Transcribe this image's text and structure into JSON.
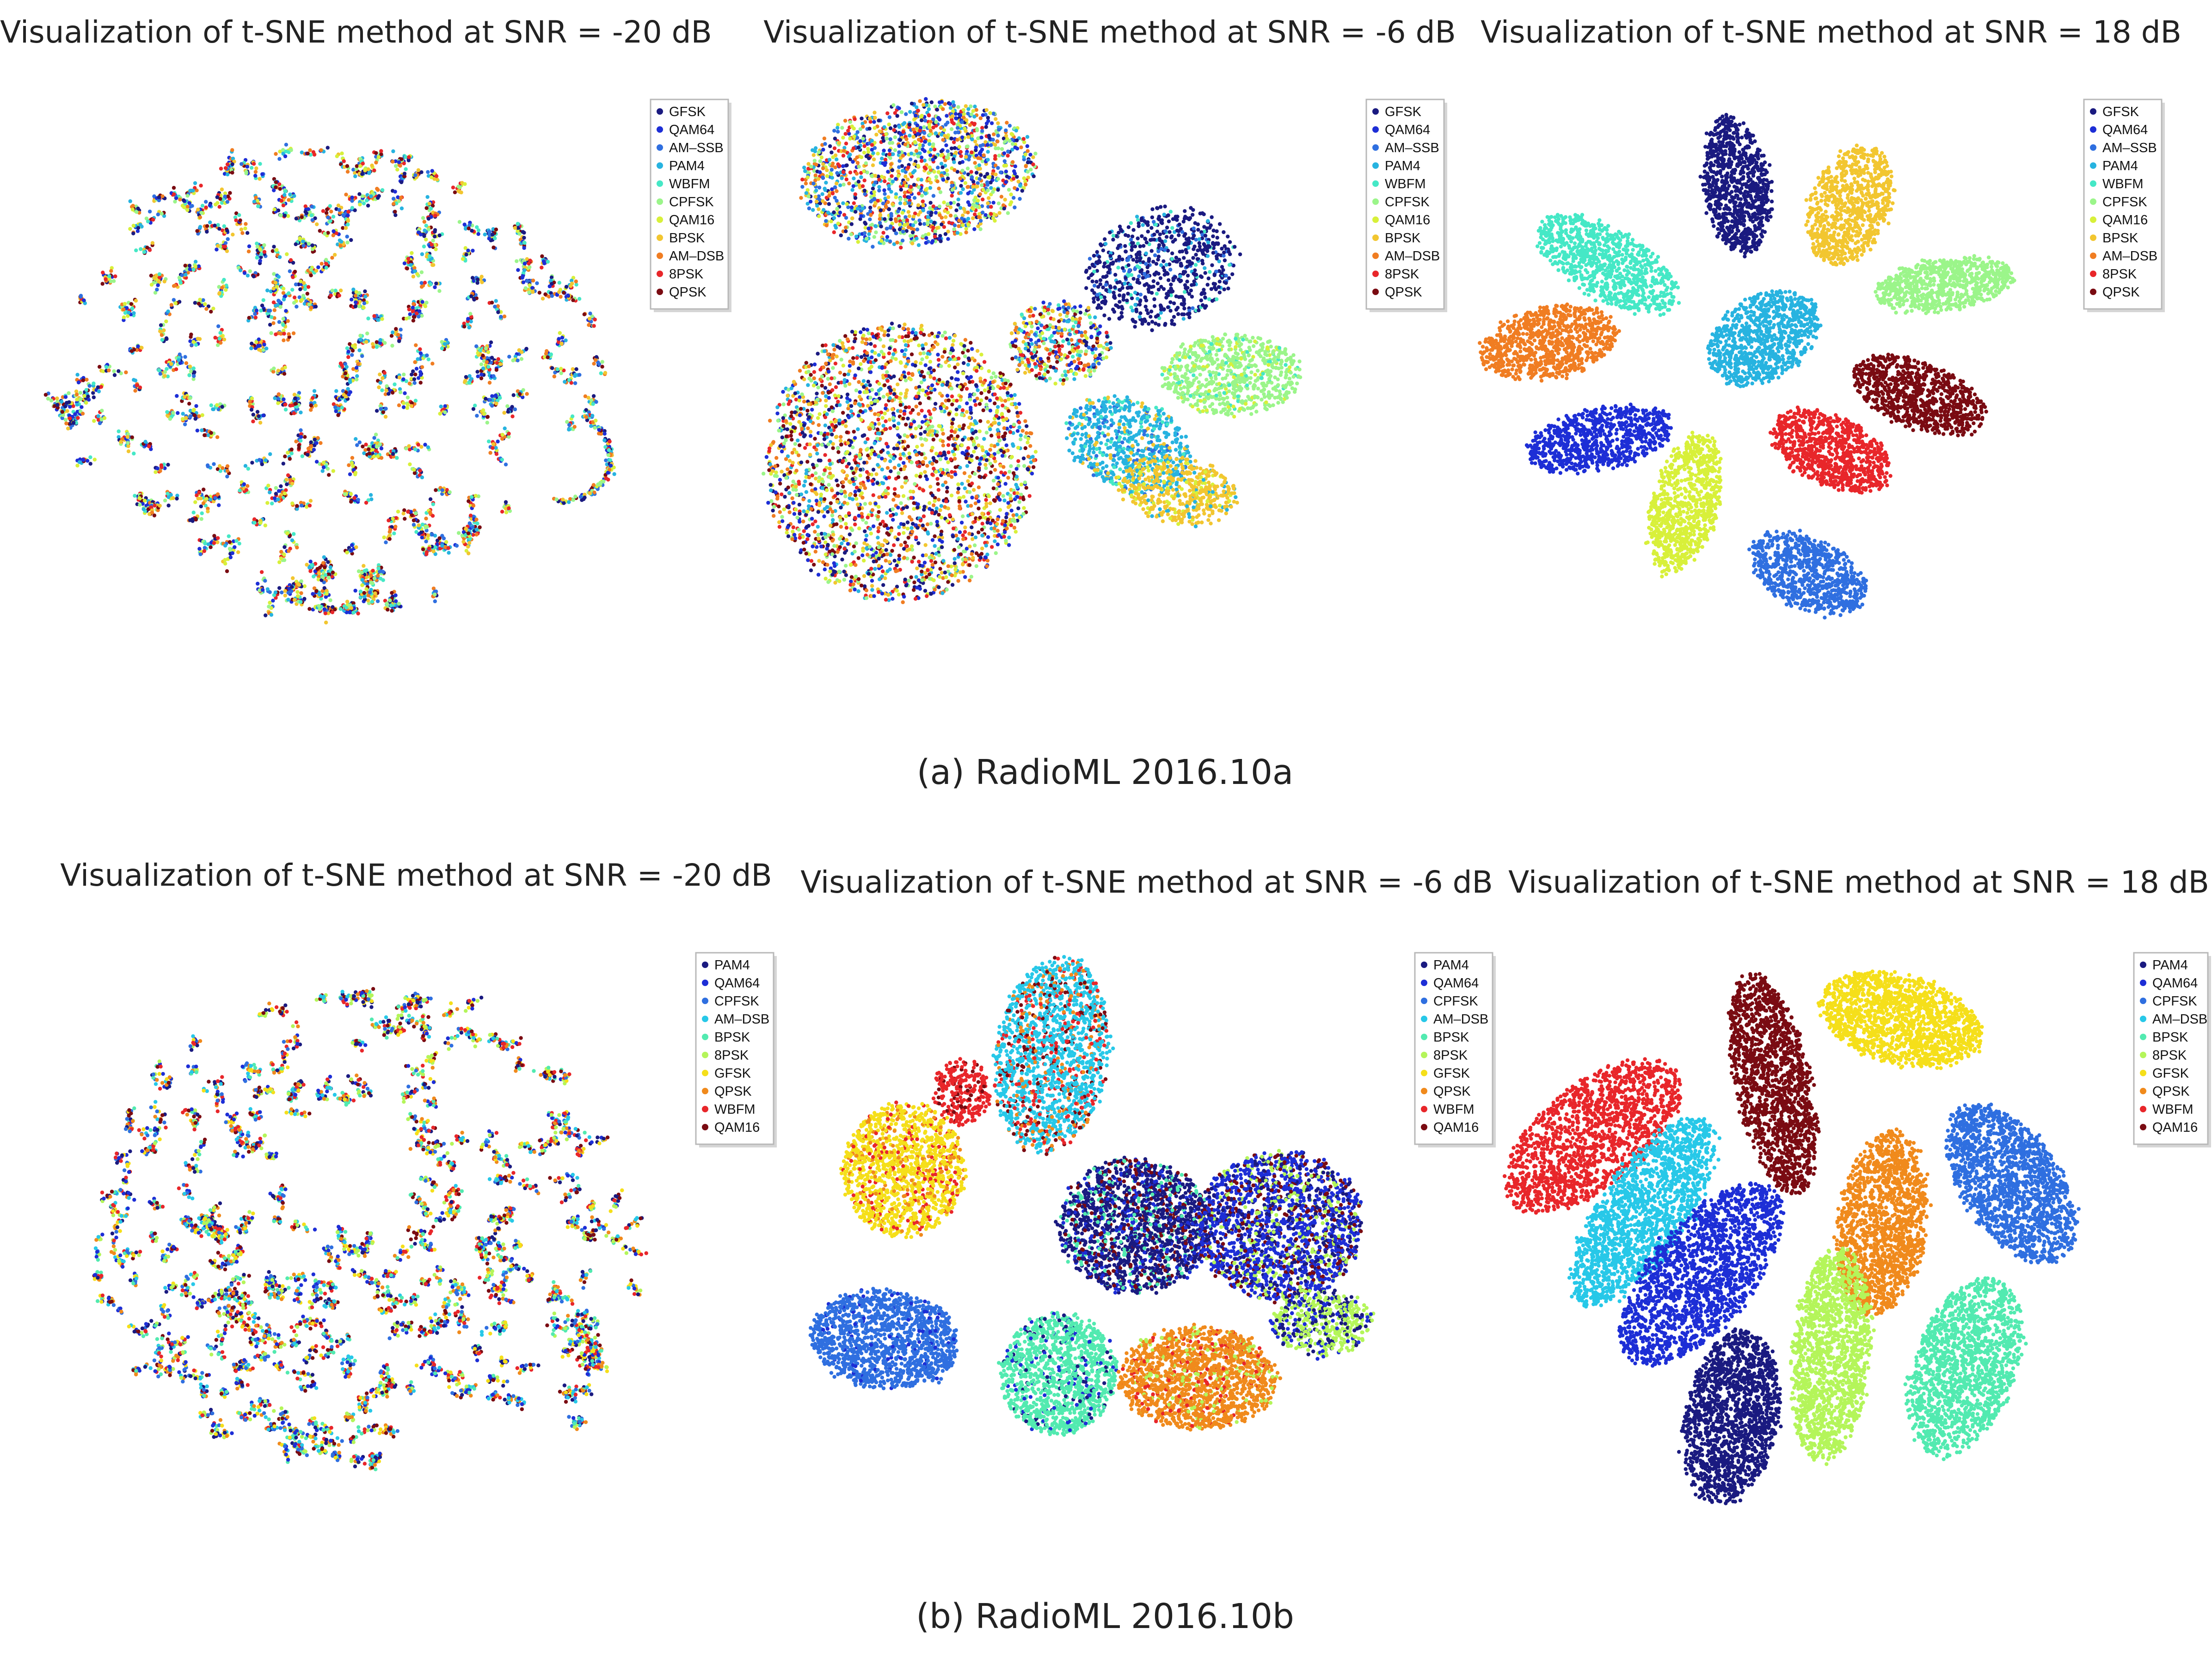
{
  "figure": {
    "caption_a": "(a) RadioML 2016.10a",
    "caption_b": "(b) RadioML 2016.10b"
  },
  "palette": {
    "GFSK_a": "#1a1a80",
    "QAM64_a": "#1d2ed6",
    "AM-SSB": "#2f6fe0",
    "PAM4_a": "#27b3e0",
    "WBFM_a": "#45e8c6",
    "CPFSK_a": "#9bf58a",
    "QAM16_a": "#d8f03a",
    "BPSK_a": "#f2c630",
    "AM-DSB_a": "#f07d22",
    "8PSK_a": "#e8262a",
    "QPSK_a": "#7a0b12"
  },
  "chart_data": [
    {
      "type": "scatter",
      "title": "Visualization of t-SNE method at SNR = -20 dB",
      "dataset": "RadioML 2016.10a",
      "snr_db": -20,
      "clustering": "mixed",
      "legend_position": "top-right",
      "series": [
        {
          "name": "GFSK",
          "color": "#1a1a80"
        },
        {
          "name": "QAM64",
          "color": "#1d2ed6"
        },
        {
          "name": "AM–SSB",
          "color": "#2f6fe0"
        },
        {
          "name": "PAM4",
          "color": "#27b3e0"
        },
        {
          "name": "WBFM",
          "color": "#45e8c6"
        },
        {
          "name": "CPFSK",
          "color": "#9bf58a"
        },
        {
          "name": "QAM16",
          "color": "#d8f03a"
        },
        {
          "name": "BPSK",
          "color": "#f2c630"
        },
        {
          "name": "AM–DSB",
          "color": "#f07d22"
        },
        {
          "name": "8PSK",
          "color": "#e8262a"
        },
        {
          "name": "QPSK",
          "color": "#7a0b12"
        }
      ]
    },
    {
      "type": "scatter",
      "title": "Visualization of t-SNE method at SNR = -6 dB",
      "dataset": "RadioML 2016.10a",
      "snr_db": -6,
      "clustering": "partial",
      "legend_position": "top-right",
      "series": [
        {
          "name": "GFSK",
          "color": "#1a1a80"
        },
        {
          "name": "QAM64",
          "color": "#1d2ed6"
        },
        {
          "name": "AM–SSB",
          "color": "#2f6fe0"
        },
        {
          "name": "PAM4",
          "color": "#27b3e0"
        },
        {
          "name": "WBFM",
          "color": "#45e8c6"
        },
        {
          "name": "CPFSK",
          "color": "#9bf58a"
        },
        {
          "name": "QAM16",
          "color": "#d8f03a"
        },
        {
          "name": "BPSK",
          "color": "#f2c630"
        },
        {
          "name": "AM–DSB",
          "color": "#f07d22"
        },
        {
          "name": "8PSK",
          "color": "#e8262a"
        },
        {
          "name": "QPSK",
          "color": "#7a0b12"
        }
      ]
    },
    {
      "type": "scatter",
      "title": "Visualization of t-SNE method at SNR = 18 dB",
      "dataset": "RadioML 2016.10a",
      "snr_db": 18,
      "clustering": "separated",
      "legend_position": "top-right",
      "series": [
        {
          "name": "GFSK",
          "color": "#1a1a80"
        },
        {
          "name": "QAM64",
          "color": "#1d2ed6"
        },
        {
          "name": "AM–SSB",
          "color": "#2f6fe0"
        },
        {
          "name": "PAM4",
          "color": "#27b3e0"
        },
        {
          "name": "WBFM",
          "color": "#45e8c6"
        },
        {
          "name": "CPFSK",
          "color": "#9bf58a"
        },
        {
          "name": "QAM16",
          "color": "#d8f03a"
        },
        {
          "name": "BPSK",
          "color": "#f2c630"
        },
        {
          "name": "AM–DSB",
          "color": "#f07d22"
        },
        {
          "name": "8PSK",
          "color": "#e8262a"
        },
        {
          "name": "QPSK",
          "color": "#7a0b12"
        }
      ]
    },
    {
      "type": "scatter",
      "title": "Visualization of t-SNE method at SNR = -20 dB",
      "dataset": "RadioML 2016.10b",
      "snr_db": -20,
      "clustering": "mixed",
      "legend_position": "top-right",
      "series": [
        {
          "name": "PAM4",
          "color": "#1a1a80"
        },
        {
          "name": "QAM64",
          "color": "#1d2ed6"
        },
        {
          "name": "CPFSK",
          "color": "#2f6fe0"
        },
        {
          "name": "AM–DSB",
          "color": "#27c8e8"
        },
        {
          "name": "BPSK",
          "color": "#52eab0"
        },
        {
          "name": "8PSK",
          "color": "#b4f55a"
        },
        {
          "name": "GFSK",
          "color": "#f5df1a"
        },
        {
          "name": "QPSK",
          "color": "#f08a1c"
        },
        {
          "name": "WBFM",
          "color": "#e8262a"
        },
        {
          "name": "QAM16",
          "color": "#7a0b12"
        }
      ]
    },
    {
      "type": "scatter",
      "title": "Visualization of t-SNE method at SNR = -6 dB",
      "dataset": "RadioML 2016.10b",
      "snr_db": -6,
      "clustering": "partial",
      "legend_position": "top-right",
      "series": [
        {
          "name": "PAM4",
          "color": "#1a1a80"
        },
        {
          "name": "QAM64",
          "color": "#1d2ed6"
        },
        {
          "name": "CPFSK",
          "color": "#2f6fe0"
        },
        {
          "name": "AM–DSB",
          "color": "#27c8e8"
        },
        {
          "name": "BPSK",
          "color": "#52eab0"
        },
        {
          "name": "8PSK",
          "color": "#b4f55a"
        },
        {
          "name": "GFSK",
          "color": "#f5df1a"
        },
        {
          "name": "QPSK",
          "color": "#f08a1c"
        },
        {
          "name": "WBFM",
          "color": "#e8262a"
        },
        {
          "name": "QAM16",
          "color": "#7a0b12"
        }
      ]
    },
    {
      "type": "scatter",
      "title": "Visualization of t-SNE method at SNR = 18 dB",
      "dataset": "RadioML 2016.10b",
      "snr_db": 18,
      "clustering": "separated",
      "legend_position": "top-right",
      "series": [
        {
          "name": "PAM4",
          "color": "#1a1a80"
        },
        {
          "name": "QAM64",
          "color": "#1d2ed6"
        },
        {
          "name": "CPFSK",
          "color": "#2f6fe0"
        },
        {
          "name": "AM–DSB",
          "color": "#27c8e8"
        },
        {
          "name": "BPSK",
          "color": "#52eab0"
        },
        {
          "name": "8PSK",
          "color": "#b4f55a"
        },
        {
          "name": "GFSK",
          "color": "#f5df1a"
        },
        {
          "name": "QPSK",
          "color": "#f08a1c"
        },
        {
          "name": "WBFM",
          "color": "#e8262a"
        },
        {
          "name": "QAM16",
          "color": "#7a0b12"
        }
      ]
    }
  ]
}
